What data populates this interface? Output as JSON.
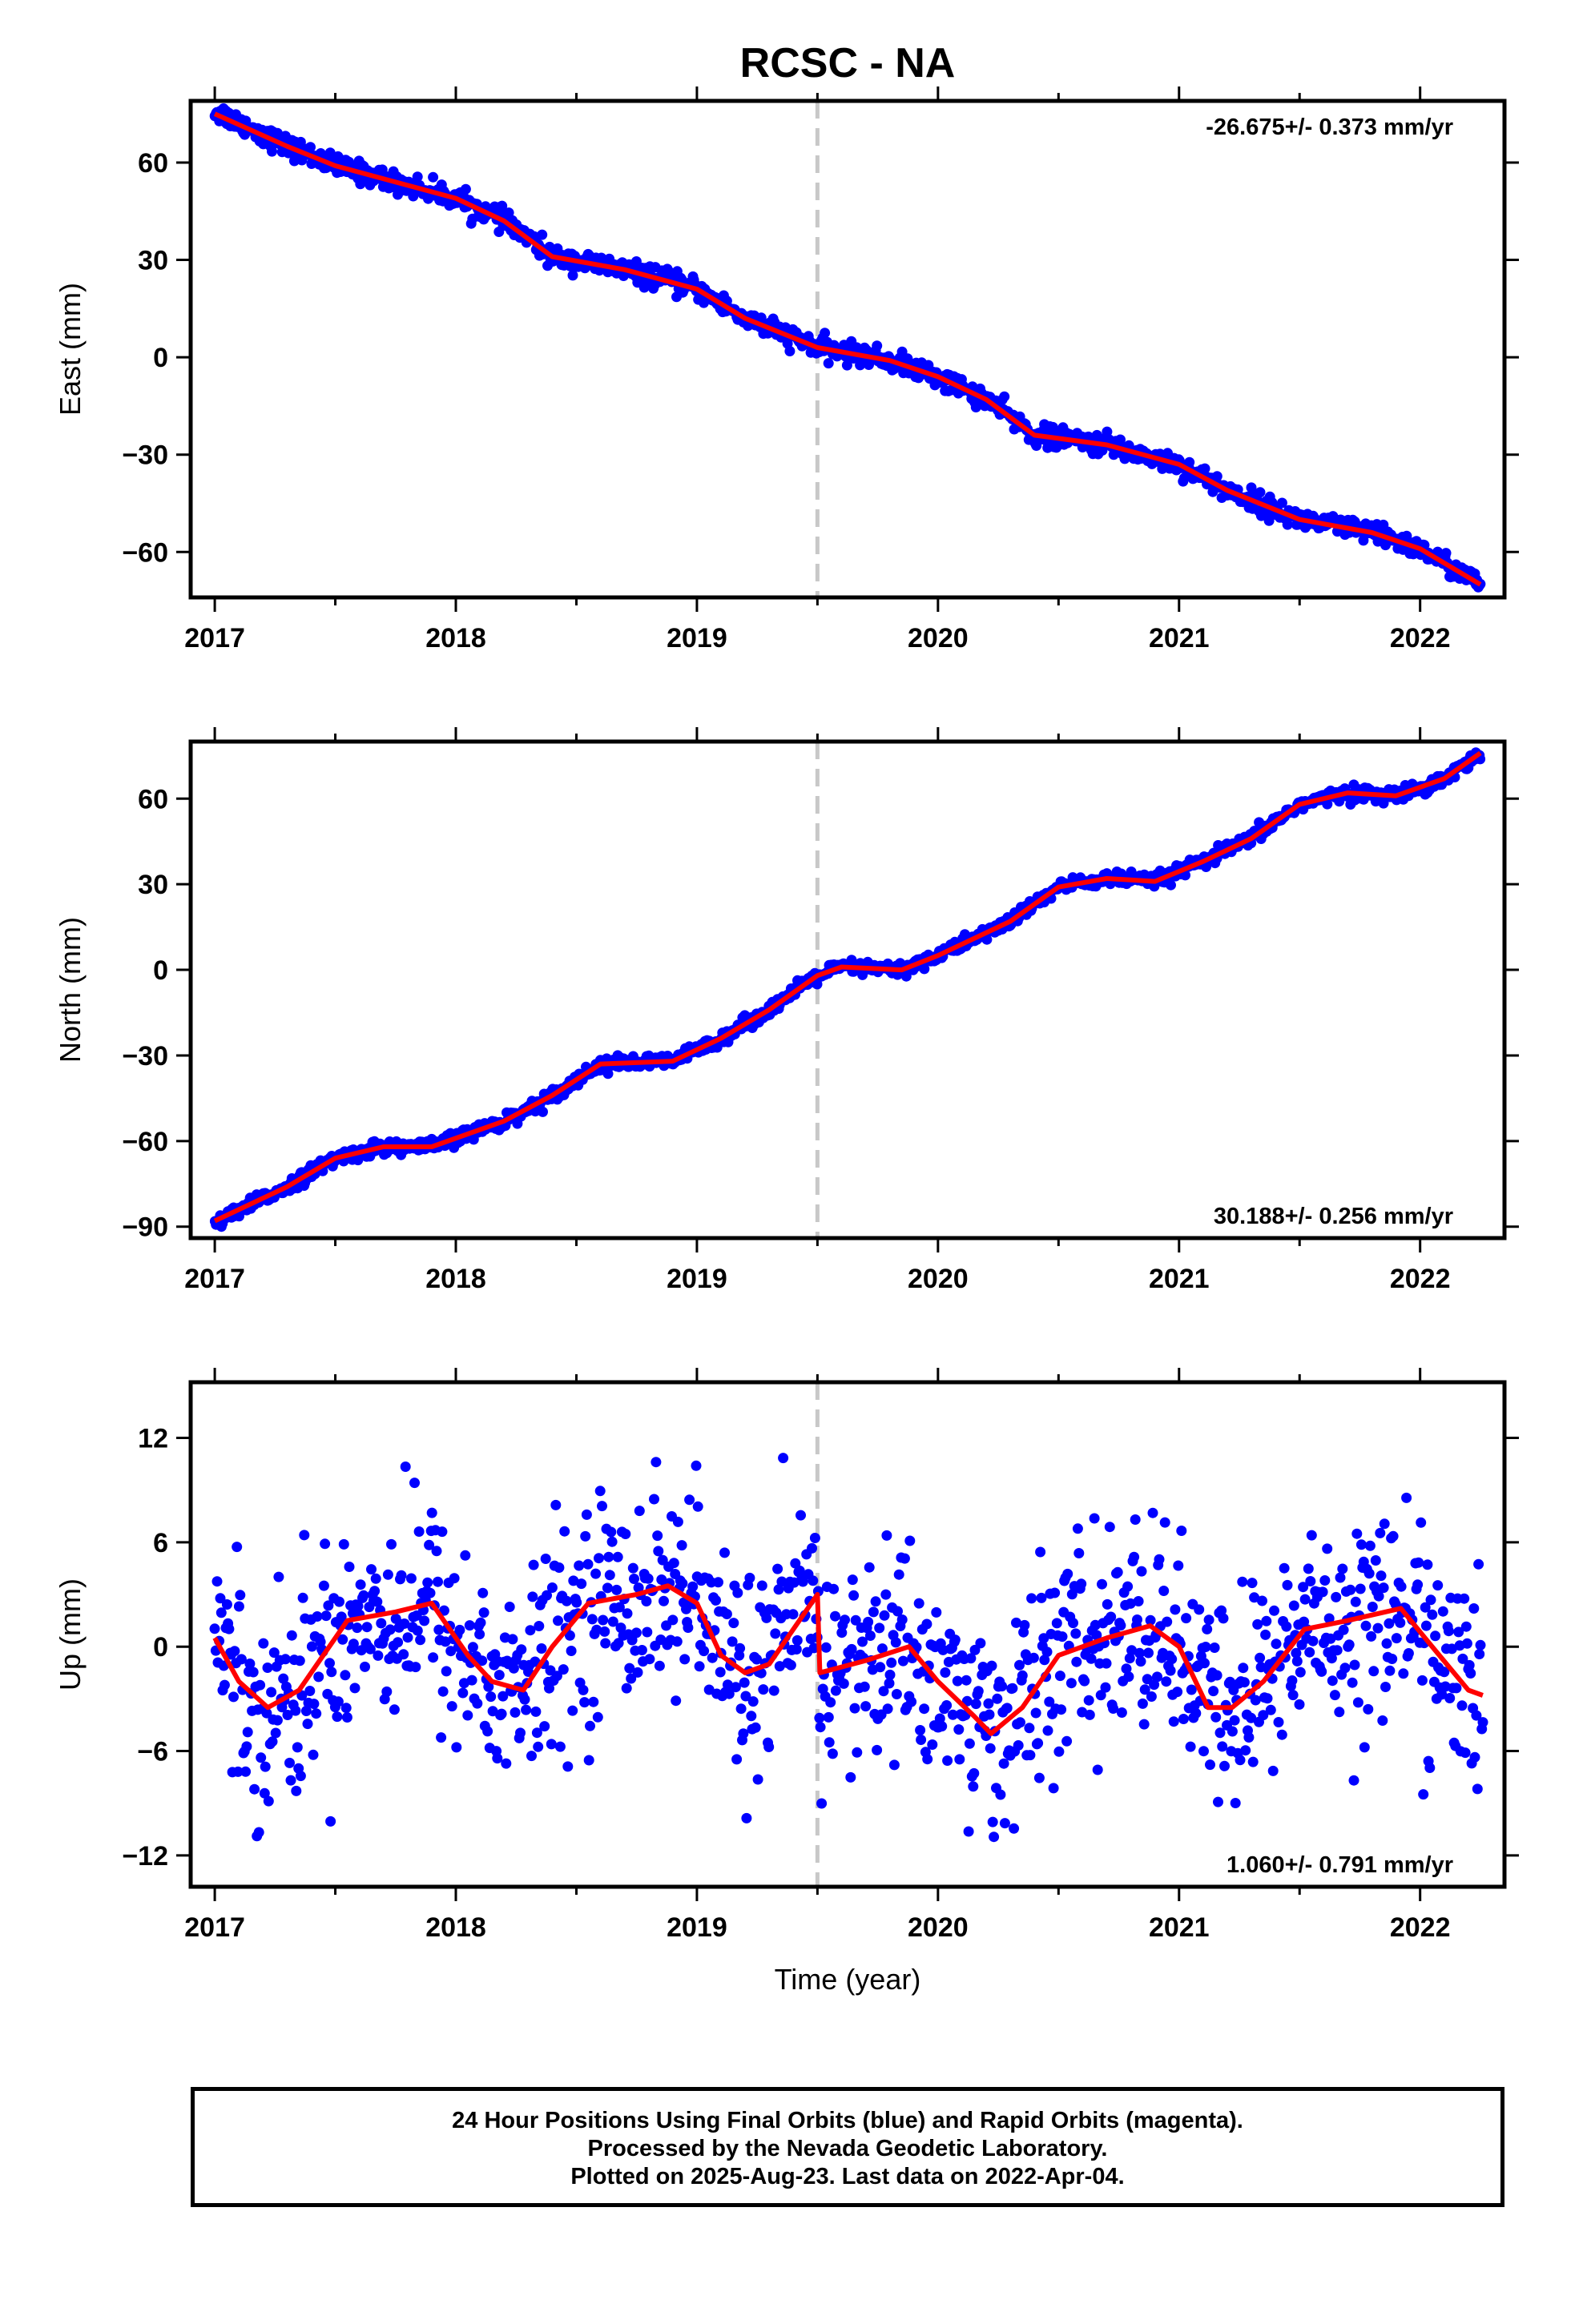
{
  "figure": {
    "title": "RCSC - NA",
    "x_label": "Time (year)",
    "caption": [
      "24 Hour Positions Using Final Orbits (blue) and Rapid Orbits (magenta).",
      "Processed by the Nevada Geodetic Laboratory.",
      "Plotted on 2025-Aug-23. Last data on 2022-Apr-04."
    ]
  },
  "colors": {
    "final_orbits": "#0000ff",
    "model_fit": "#ff0000",
    "event_line": "#c8c8c8"
  },
  "chart_data": [
    {
      "type": "scatter",
      "ylabel": "East (mm)",
      "xlim": [
        2016.9,
        2022.35
      ],
      "ylim": [
        -74,
        79
      ],
      "xticks": [
        "2017",
        "2018",
        "2019",
        "2020",
        "2021",
        "2022"
      ],
      "yticks": [
        "60",
        "30",
        "0",
        "−30",
        "−60"
      ],
      "ytick_values": [
        60,
        30,
        0,
        -30,
        -60
      ],
      "rate_label": "-26.675+/- 0.373 mm/yr",
      "rate_position": "top-right",
      "event_line_x": 2019.5,
      "noise_mm": 1.6,
      "trend_points": [
        [
          2017.0,
          76
        ],
        [
          2017.3,
          65
        ],
        [
          2017.5,
          59
        ],
        [
          2017.8,
          53
        ],
        [
          2018.0,
          49
        ],
        [
          2018.2,
          42
        ],
        [
          2018.4,
          31
        ],
        [
          2018.7,
          27
        ],
        [
          2019.0,
          21
        ],
        [
          2019.2,
          12
        ],
        [
          2019.5,
          3
        ],
        [
          2019.8,
          -1
        ],
        [
          2020.0,
          -6
        ],
        [
          2020.2,
          -13
        ],
        [
          2020.4,
          -24
        ],
        [
          2020.7,
          -27
        ],
        [
          2021.0,
          -33
        ],
        [
          2021.2,
          -41
        ],
        [
          2021.5,
          -50
        ],
        [
          2021.8,
          -54
        ],
        [
          2022.0,
          -59
        ],
        [
          2022.25,
          -70
        ]
      ],
      "fit_points": [
        [
          2017.0,
          75
        ],
        [
          2017.3,
          65
        ],
        [
          2017.5,
          59
        ],
        [
          2017.8,
          53
        ],
        [
          2018.0,
          49
        ],
        [
          2018.2,
          42
        ],
        [
          2018.4,
          31
        ],
        [
          2018.7,
          27
        ],
        [
          2019.0,
          21
        ],
        [
          2019.2,
          12
        ],
        [
          2019.5,
          3
        ],
        [
          2019.8,
          -1
        ],
        [
          2020.0,
          -6
        ],
        [
          2020.2,
          -13
        ],
        [
          2020.4,
          -24
        ],
        [
          2020.7,
          -27
        ],
        [
          2021.0,
          -33
        ],
        [
          2021.2,
          -41
        ],
        [
          2021.5,
          -50
        ],
        [
          2021.8,
          -54
        ],
        [
          2022.0,
          -59
        ],
        [
          2022.25,
          -70
        ]
      ]
    },
    {
      "type": "scatter",
      "ylabel": "North (mm)",
      "xlim": [
        2016.9,
        2022.35
      ],
      "ylim": [
        -94,
        80
      ],
      "xticks": [
        "2017",
        "2018",
        "2019",
        "2020",
        "2021",
        "2022"
      ],
      "yticks": [
        "60",
        "30",
        "0",
        "−30",
        "−60",
        "−90"
      ],
      "ytick_values": [
        60,
        30,
        0,
        -30,
        -60,
        -90
      ],
      "rate_label": "30.188+/- 0.256 mm/yr",
      "rate_position": "bottom-right",
      "event_line_x": 2019.5,
      "noise_mm": 1.2,
      "trend_points": [
        [
          2017.0,
          -89
        ],
        [
          2017.3,
          -76
        ],
        [
          2017.5,
          -66
        ],
        [
          2017.7,
          -62
        ],
        [
          2017.9,
          -62
        ],
        [
          2018.2,
          -53
        ],
        [
          2018.4,
          -44
        ],
        [
          2018.6,
          -33
        ],
        [
          2018.9,
          -32
        ],
        [
          2019.1,
          -24
        ],
        [
          2019.3,
          -14
        ],
        [
          2019.5,
          -2
        ],
        [
          2019.6,
          1
        ],
        [
          2019.85,
          0
        ],
        [
          2020.0,
          5
        ],
        [
          2020.3,
          17
        ],
        [
          2020.5,
          29
        ],
        [
          2020.7,
          32
        ],
        [
          2020.9,
          31
        ],
        [
          2021.1,
          38
        ],
        [
          2021.3,
          46
        ],
        [
          2021.5,
          58
        ],
        [
          2021.7,
          62
        ],
        [
          2021.9,
          61
        ],
        [
          2022.1,
          67
        ],
        [
          2022.25,
          76
        ]
      ],
      "fit_points": [
        [
          2017.0,
          -88
        ],
        [
          2017.3,
          -76
        ],
        [
          2017.5,
          -66
        ],
        [
          2017.7,
          -62
        ],
        [
          2017.9,
          -62
        ],
        [
          2018.2,
          -53
        ],
        [
          2018.4,
          -44
        ],
        [
          2018.6,
          -33
        ],
        [
          2018.9,
          -32
        ],
        [
          2019.1,
          -24
        ],
        [
          2019.3,
          -14
        ],
        [
          2019.5,
          -2
        ],
        [
          2019.6,
          1
        ],
        [
          2019.85,
          0
        ],
        [
          2020.0,
          5
        ],
        [
          2020.3,
          17
        ],
        [
          2020.5,
          29
        ],
        [
          2020.7,
          32
        ],
        [
          2020.9,
          31
        ],
        [
          2021.1,
          38
        ],
        [
          2021.3,
          46
        ],
        [
          2021.5,
          58
        ],
        [
          2021.7,
          62
        ],
        [
          2021.9,
          61
        ],
        [
          2022.1,
          67
        ],
        [
          2022.25,
          76
        ]
      ]
    },
    {
      "type": "scatter",
      "ylabel": "Up (mm)",
      "xlim": [
        2016.9,
        2022.35
      ],
      "ylim": [
        -13.8,
        15.2
      ],
      "xticks": [
        "2017",
        "2018",
        "2019",
        "2020",
        "2021",
        "2022"
      ],
      "yticks": [
        "12",
        "6",
        "0",
        "−6",
        "−12"
      ],
      "ytick_values": [
        12,
        6,
        0,
        -6,
        -12
      ],
      "rate_label": "1.060+/- 0.791 mm/yr",
      "rate_position": "bottom-right",
      "event_line_x": 2019.5,
      "noise_mm": 3.0,
      "trend_points": [
        [
          2017.0,
          0.5
        ],
        [
          2017.1,
          -2
        ],
        [
          2017.22,
          -3.5
        ],
        [
          2017.35,
          -2.5
        ],
        [
          2017.55,
          1.5
        ],
        [
          2017.75,
          2
        ],
        [
          2017.9,
          2.5
        ],
        [
          2018.05,
          -0.5
        ],
        [
          2018.15,
          -2
        ],
        [
          2018.28,
          -2.5
        ],
        [
          2018.4,
          0
        ],
        [
          2018.55,
          2.5
        ],
        [
          2018.75,
          3
        ],
        [
          2018.88,
          3.5
        ],
        [
          2019.0,
          2.5
        ],
        [
          2019.1,
          -0.5
        ],
        [
          2019.2,
          -1.5
        ],
        [
          2019.3,
          -1
        ],
        [
          2019.5,
          3
        ],
        [
          2019.51,
          -1.5
        ],
        [
          2019.7,
          -0.8
        ],
        [
          2019.88,
          0
        ],
        [
          2020.0,
          -2
        ],
        [
          2020.15,
          -4
        ],
        [
          2020.22,
          -5
        ],
        [
          2020.35,
          -3.5
        ],
        [
          2020.5,
          -0.5
        ],
        [
          2020.7,
          0.5
        ],
        [
          2020.88,
          1.2
        ],
        [
          2021.0,
          0
        ],
        [
          2021.12,
          -3.5
        ],
        [
          2021.22,
          -3.5
        ],
        [
          2021.35,
          -2
        ],
        [
          2021.52,
          1
        ],
        [
          2021.7,
          1.5
        ],
        [
          2021.92,
          2.2
        ],
        [
          2022.05,
          0
        ],
        [
          2022.2,
          -2.5
        ],
        [
          2022.26,
          -2.8
        ]
      ],
      "fit_points": [
        [
          2017.0,
          0.5
        ],
        [
          2017.1,
          -2
        ],
        [
          2017.22,
          -3.5
        ],
        [
          2017.35,
          -2.5
        ],
        [
          2017.55,
          1.5
        ],
        [
          2017.75,
          2
        ],
        [
          2017.9,
          2.5
        ],
        [
          2018.05,
          -0.5
        ],
        [
          2018.15,
          -2
        ],
        [
          2018.28,
          -2.5
        ],
        [
          2018.4,
          0
        ],
        [
          2018.55,
          2.5
        ],
        [
          2018.75,
          3
        ],
        [
          2018.88,
          3.5
        ],
        [
          2019.0,
          2.5
        ],
        [
          2019.1,
          -0.5
        ],
        [
          2019.2,
          -1.5
        ],
        [
          2019.3,
          -1
        ],
        [
          2019.5,
          3
        ],
        [
          2019.51,
          -1.5
        ],
        [
          2019.7,
          -0.8
        ],
        [
          2019.88,
          0
        ],
        [
          2020.0,
          -2
        ],
        [
          2020.15,
          -4
        ],
        [
          2020.22,
          -5
        ],
        [
          2020.35,
          -3.5
        ],
        [
          2020.5,
          -0.5
        ],
        [
          2020.7,
          0.5
        ],
        [
          2020.88,
          1.2
        ],
        [
          2021.0,
          0
        ],
        [
          2021.12,
          -3.5
        ],
        [
          2021.22,
          -3.5
        ],
        [
          2021.35,
          -2
        ],
        [
          2021.52,
          1
        ],
        [
          2021.7,
          1.5
        ],
        [
          2021.92,
          2.2
        ],
        [
          2022.05,
          0
        ],
        [
          2022.2,
          -2.5
        ],
        [
          2022.26,
          -2.8
        ]
      ]
    }
  ]
}
